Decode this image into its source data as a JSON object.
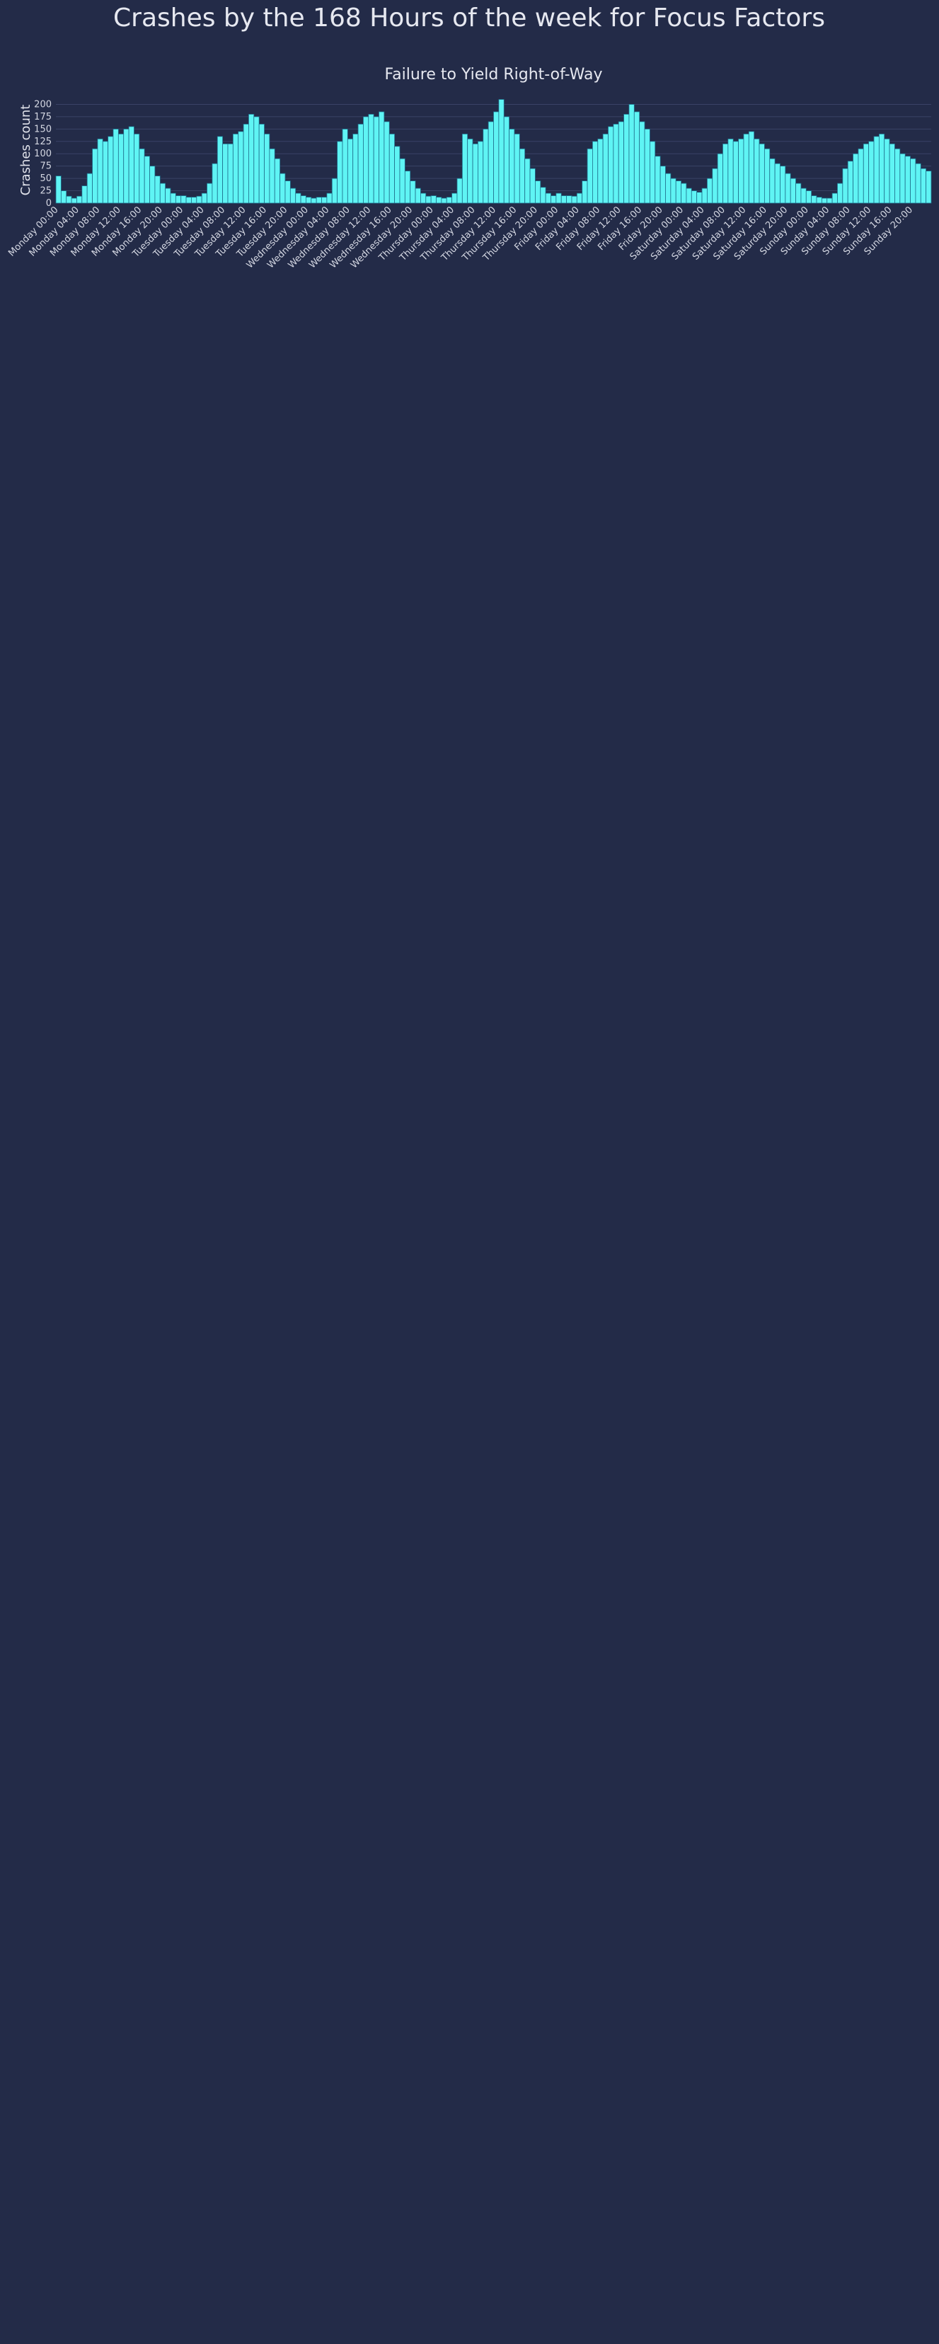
{
  "figure_title": "Crashes by the 168 Hours of the week for Focus Factors",
  "ylabel": "Crashes count",
  "colors": {
    "background": "#232b48",
    "grid": "#3a4366",
    "bar": "#5ff4f4",
    "bar_edge": "#1f6f8c",
    "text": "#e6e8f0"
  },
  "x_tick_labels": [
    "Monday 00:00",
    "Monday 04:00",
    "Monday 08:00",
    "Monday 12:00",
    "Monday 16:00",
    "Monday 20:00",
    "Tuesday 00:00",
    "Tuesday 04:00",
    "Tuesday 08:00",
    "Tuesday 12:00",
    "Tuesday 16:00",
    "Tuesday 20:00",
    "Wednesday 00:00",
    "Wednesday 04:00",
    "Wednesday 08:00",
    "Wednesday 12:00",
    "Wednesday 16:00",
    "Wednesday 20:00",
    "Thursday 00:00",
    "Thursday 04:00",
    "Thursday 08:00",
    "Thursday 12:00",
    "Thursday 16:00",
    "Thursday 20:00",
    "Friday 00:00",
    "Friday 04:00",
    "Friday 08:00",
    "Friday 12:00",
    "Friday 16:00",
    "Friday 20:00",
    "Saturday 00:00",
    "Saturday 04:00",
    "Saturday 08:00",
    "Saturday 12:00",
    "Saturday 16:00",
    "Saturday 20:00",
    "Sunday 00:00",
    "Sunday 04:00",
    "Sunday 08:00",
    "Sunday 12:00",
    "Sunday 16:00",
    "Sunday 20:00"
  ],
  "chart_data": [
    {
      "type": "bar",
      "title": "Failure to Yield Right-of-Way",
      "ylabel": "Crashes count",
      "yticks": [
        0,
        25,
        50,
        75,
        100,
        125,
        150,
        175,
        200
      ],
      "ylim": [
        0,
        215
      ],
      "profile": {
        "weekday_peaks": [
          [
            [
              0,
              55
            ],
            [
              1,
              25
            ],
            [
              2,
              14
            ],
            [
              3,
              10
            ],
            [
              4,
              14
            ],
            [
              5,
              35
            ],
            [
              6,
              60
            ],
            [
              7,
              110
            ],
            [
              8,
              130
            ],
            [
              9,
              125
            ],
            [
              10,
              135
            ],
            [
              11,
              150
            ],
            [
              12,
              140
            ],
            [
              13,
              150
            ],
            [
              14,
              155
            ],
            [
              15,
              140
            ],
            [
              16,
              110
            ],
            [
              17,
              95
            ],
            [
              18,
              75
            ],
            [
              19,
              55
            ],
            [
              20,
              40
            ],
            [
              21,
              30
            ],
            [
              22,
              20
            ],
            [
              23,
              15
            ]
          ],
          [
            [
              0,
              15
            ],
            [
              1,
              12
            ],
            [
              2,
              12
            ],
            [
              3,
              14
            ],
            [
              4,
              20
            ],
            [
              5,
              40
            ],
            [
              6,
              80
            ],
            [
              7,
              135
            ],
            [
              8,
              120
            ],
            [
              9,
              120
            ],
            [
              10,
              140
            ],
            [
              11,
              145
            ],
            [
              12,
              160
            ],
            [
              13,
              180
            ],
            [
              14,
              175
            ],
            [
              15,
              160
            ],
            [
              16,
              140
            ],
            [
              17,
              110
            ],
            [
              18,
              90
            ],
            [
              19,
              60
            ],
            [
              20,
              45
            ],
            [
              21,
              30
            ],
            [
              22,
              20
            ],
            [
              23,
              15
            ]
          ],
          [
            [
              0,
              12
            ],
            [
              1,
              10
            ],
            [
              2,
              12
            ],
            [
              3,
              12
            ],
            [
              4,
              20
            ],
            [
              5,
              50
            ],
            [
              6,
              125
            ],
            [
              7,
              150
            ],
            [
              8,
              130
            ],
            [
              9,
              140
            ],
            [
              10,
              160
            ],
            [
              11,
              175
            ],
            [
              12,
              180
            ],
            [
              13,
              175
            ],
            [
              14,
              185
            ],
            [
              15,
              165
            ],
            [
              16,
              140
            ],
            [
              17,
              115
            ],
            [
              18,
              90
            ],
            [
              19,
              65
            ],
            [
              20,
              45
            ],
            [
              21,
              30
            ],
            [
              22,
              20
            ],
            [
              23,
              14
            ]
          ],
          [
            [
              0,
              15
            ],
            [
              1,
              12
            ],
            [
              2,
              10
            ],
            [
              3,
              12
            ],
            [
              4,
              20
            ],
            [
              5,
              50
            ],
            [
              6,
              140
            ],
            [
              7,
              130
            ],
            [
              8,
              120
            ],
            [
              9,
              125
            ],
            [
              10,
              150
            ],
            [
              11,
              165
            ],
            [
              12,
              185
            ],
            [
              13,
              210
            ],
            [
              14,
              175
            ],
            [
              15,
              150
            ],
            [
              16,
              140
            ],
            [
              17,
              110
            ],
            [
              18,
              90
            ],
            [
              19,
              70
            ],
            [
              20,
              45
            ],
            [
              21,
              32
            ],
            [
              22,
              20
            ],
            [
              23,
              15
            ]
          ],
          [
            [
              0,
              20
            ],
            [
              1,
              15
            ],
            [
              2,
              15
            ],
            [
              3,
              14
            ],
            [
              4,
              20
            ],
            [
              5,
              45
            ],
            [
              6,
              110
            ],
            [
              7,
              125
            ],
            [
              8,
              130
            ],
            [
              9,
              140
            ],
            [
              10,
              155
            ],
            [
              11,
              160
            ],
            [
              12,
              165
            ],
            [
              13,
              180
            ],
            [
              14,
              200
            ],
            [
              15,
              185
            ],
            [
              16,
              165
            ],
            [
              17,
              150
            ],
            [
              18,
              125
            ],
            [
              19,
              95
            ],
            [
              20,
              75
            ],
            [
              21,
              60
            ],
            [
              22,
              50
            ],
            [
              23,
              45
            ]
          ],
          [
            [
              0,
              40
            ],
            [
              1,
              30
            ],
            [
              2,
              25
            ],
            [
              3,
              22
            ],
            [
              4,
              30
            ],
            [
              5,
              50
            ],
            [
              6,
              70
            ],
            [
              7,
              100
            ],
            [
              8,
              120
            ],
            [
              9,
              130
            ],
            [
              10,
              125
            ],
            [
              11,
              130
            ],
            [
              12,
              140
            ],
            [
              13,
              145
            ],
            [
              14,
              130
            ],
            [
              15,
              120
            ],
            [
              16,
              110
            ],
            [
              17,
              90
            ],
            [
              18,
              80
            ],
            [
              19,
              75
            ],
            [
              20,
              60
            ],
            [
              21,
              50
            ],
            [
              22,
              40
            ],
            [
              23,
              30
            ]
          ],
          [
            [
              0,
              25
            ],
            [
              1,
              15
            ],
            [
              2,
              12
            ],
            [
              3,
              10
            ],
            [
              4,
              10
            ],
            [
              5,
              20
            ],
            [
              6,
              40
            ],
            [
              7,
              70
            ],
            [
              8,
              85
            ],
            [
              9,
              100
            ],
            [
              10,
              110
            ],
            [
              11,
              120
            ],
            [
              12,
              125
            ],
            [
              13,
              135
            ],
            [
              14,
              140
            ],
            [
              15,
              130
            ],
            [
              16,
              120
            ],
            [
              17,
              110
            ],
            [
              18,
              100
            ],
            [
              19,
              95
            ],
            [
              20,
              90
            ],
            [
              21,
              80
            ],
            [
              22,
              70
            ],
            [
              23,
              65
            ]
          ]
        ]
      }
    }
  ]
}
